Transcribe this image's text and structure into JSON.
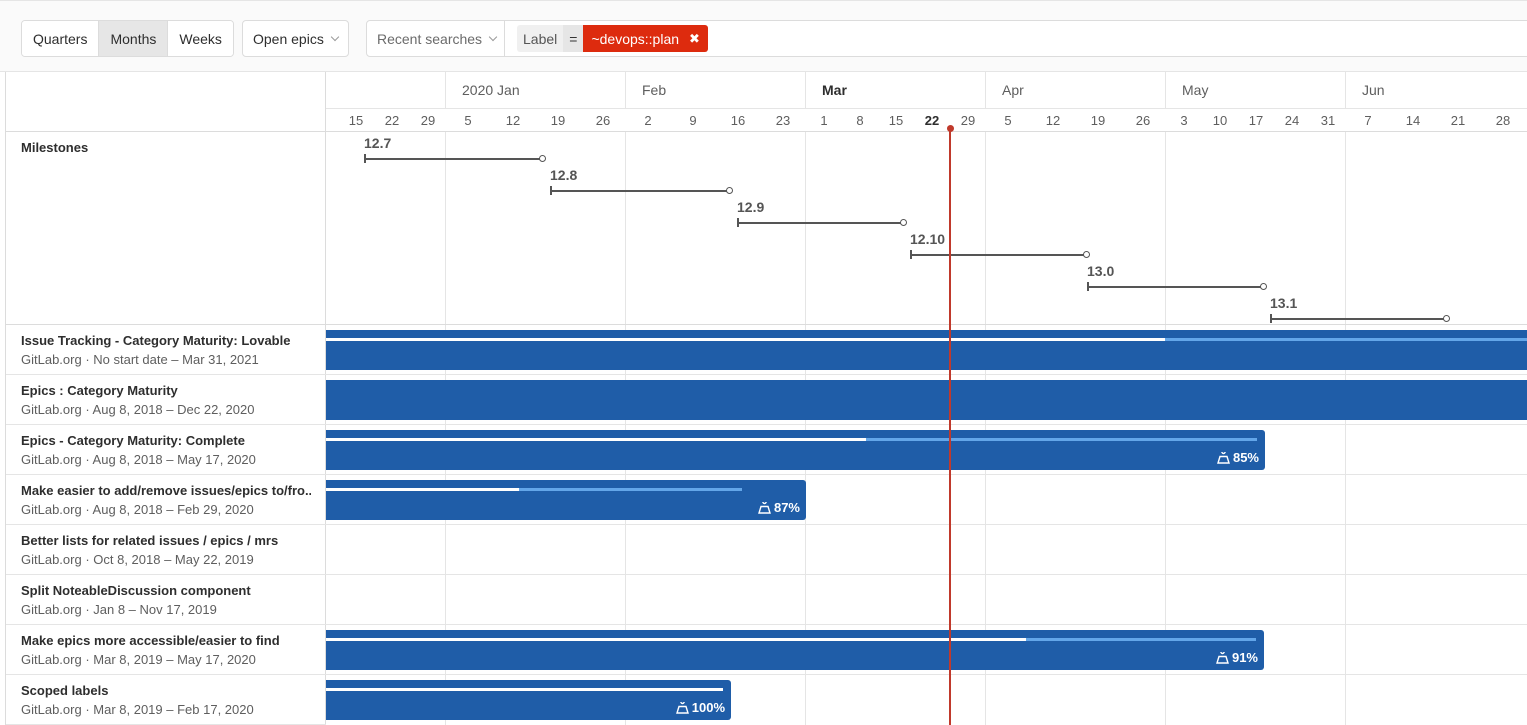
{
  "toolbar": {
    "view_tabs": [
      "Quarters",
      "Months",
      "Weeks"
    ],
    "active_tab": "Months",
    "state_filter": "Open epics",
    "recent_searches": "Recent searches",
    "token": {
      "name": "Label",
      "operator": "=",
      "value": "~devops::plan"
    }
  },
  "timeline": {
    "months": [
      "2020 Jan",
      "Feb",
      "Mar",
      "Apr",
      "May",
      "Jun"
    ],
    "days_prev": [
      "15",
      "22",
      "29"
    ],
    "days": {
      "jan": [
        "5",
        "12",
        "19",
        "26"
      ],
      "feb": [
        "2",
        "9",
        "16",
        "23"
      ],
      "mar": [
        "1",
        "8",
        "15",
        "22",
        "29"
      ],
      "apr": [
        "5",
        "12",
        "19",
        "26"
      ],
      "may": [
        "3",
        "10",
        "17",
        "24",
        "31"
      ],
      "jun": [
        "7",
        "14",
        "21",
        "28"
      ]
    },
    "today": "22"
  },
  "milestones": {
    "label": "Milestones",
    "items": [
      "12.7",
      "12.8",
      "12.9",
      "12.10",
      "13.0",
      "13.1"
    ]
  },
  "epics": [
    {
      "title": "Issue Tracking - Category Maturity: Lovable",
      "group": "GitLab.org",
      "dates": "No start date – Mar 31, 2021",
      "percent": null
    },
    {
      "title": "Epics : Category Maturity",
      "group": "GitLab.org",
      "dates": "Aug 8, 2018 – Dec 22, 2020",
      "percent": null
    },
    {
      "title": "Epics - Category Maturity: Complete",
      "group": "GitLab.org",
      "dates": "Aug 8, 2018 – May 17, 2020",
      "percent": "85%"
    },
    {
      "title": "Make easier to add/remove issues/epics to/fro...",
      "group": "GitLab.org",
      "dates": "Aug 8, 2018 – Feb 29, 2020",
      "percent": "87%"
    },
    {
      "title": "Better lists for related issues / epics / mrs",
      "group": "GitLab.org",
      "dates": "Oct 8, 2018 – May 22, 2019",
      "percent": null
    },
    {
      "title": "Split NoteableDiscussion component",
      "group": "GitLab.org",
      "dates": "Jan 8 – Nov 17, 2019",
      "percent": null
    },
    {
      "title": "Make epics more accessible/easier to find",
      "group": "GitLab.org",
      "dates": "Mar 8, 2019 – May 17, 2020",
      "percent": "91%"
    },
    {
      "title": "Scoped labels",
      "group": "GitLab.org",
      "dates": "Mar 8, 2019 – Feb 17, 2020",
      "percent": "100%"
    }
  ],
  "colors": {
    "bar": "#1f5da8",
    "progress": "#63a6e9",
    "today": "#c0392b",
    "token": "#dd2b0e"
  }
}
